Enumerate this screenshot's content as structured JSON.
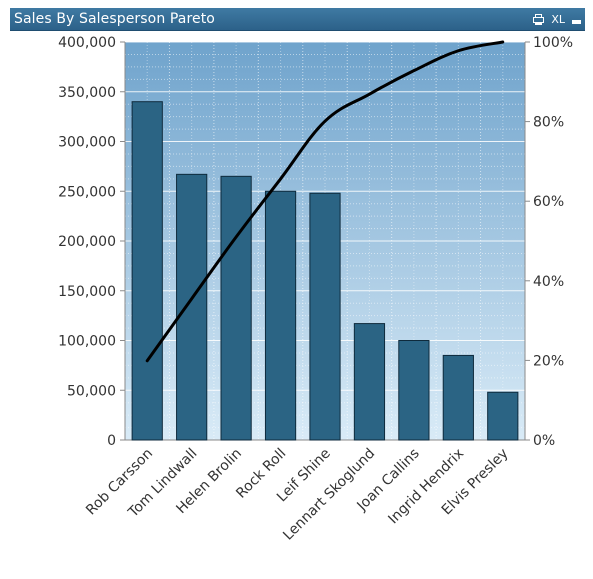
{
  "window": {
    "title": "Sales By Salesperson Pareto",
    "icons": {
      "print": "print-icon",
      "excel_label": "XL",
      "minimize": "minimize-icon"
    }
  },
  "colors": {
    "bar_fill": "#2b6484",
    "bar_stroke": "#0e2a3c",
    "line": "#000000",
    "plot_top": "#6fa3cc",
    "plot_bottom": "#d9ebf7",
    "titlebar": "#33709a"
  },
  "chart_data": {
    "type": "bar",
    "title": "Sales By Salesperson Pareto",
    "categories": [
      "Rob Carsson",
      "Tom Lindwall",
      "Helen Brolin",
      "Rock Roll",
      "Leif Shine",
      "Lennart Skoglund",
      "Joan Callins",
      "Ingrid Hendrix",
      "Elvis Presley"
    ],
    "series": [
      {
        "type": "bar",
        "axis": "left",
        "values": [
          340000,
          267000,
          265000,
          250000,
          248000,
          117000,
          100000,
          85000,
          48000
        ]
      },
      {
        "type": "line",
        "axis": "right",
        "values": [
          19.9,
          35.5,
          51.0,
          65.6,
          80.1,
          86.9,
          92.8,
          97.8,
          100
        ]
      }
    ],
    "y_left": {
      "min": 0,
      "max": 400000,
      "ticks": [
        0,
        50000,
        100000,
        150000,
        200000,
        250000,
        300000,
        350000,
        400000
      ],
      "tick_labels": [
        "0",
        "50,000",
        "100,000",
        "150,000",
        "200,000",
        "250,000",
        "300,000",
        "350,000",
        "400,000"
      ]
    },
    "y_right": {
      "min": 0,
      "max": 100,
      "ticks": [
        0,
        20,
        40,
        60,
        80,
        100
      ],
      "tick_labels": [
        "0%",
        "20%",
        "40%",
        "60%",
        "80%",
        "100%"
      ]
    },
    "grid": true,
    "legend": "none"
  }
}
